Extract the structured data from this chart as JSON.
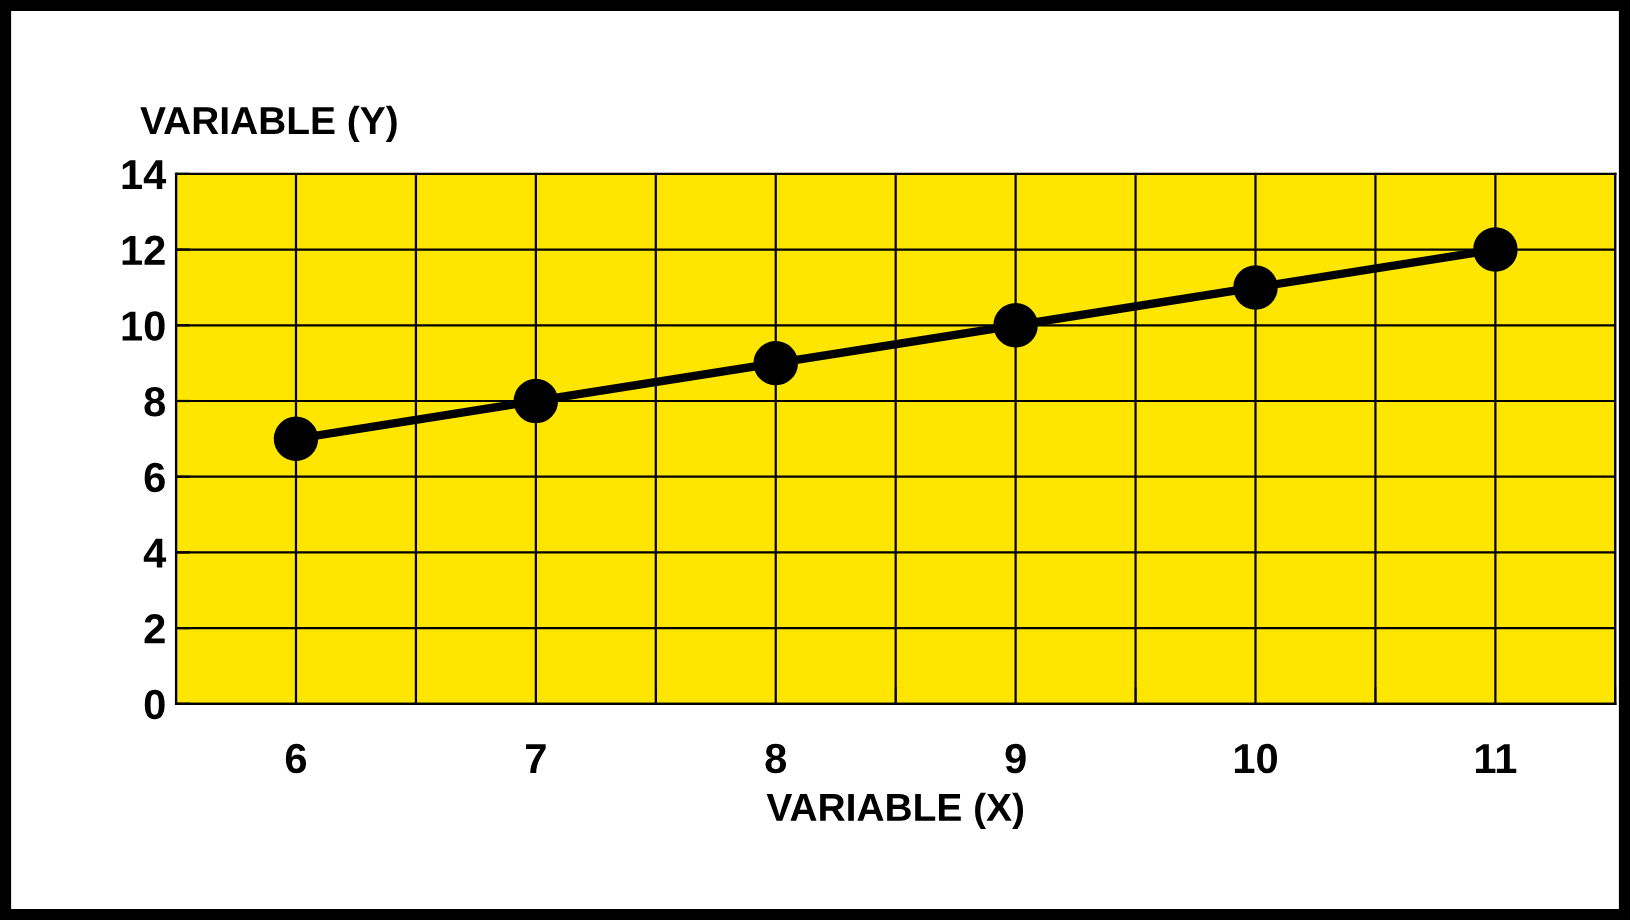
{
  "chart_data": {
    "type": "line",
    "xlabel": "VARIABLE (X)",
    "ylabel": "VARIABLE (Y)",
    "categories": [
      "6",
      "7",
      "8",
      "9",
      "10",
      "11"
    ],
    "series": [
      {
        "color": "#000000",
        "values": [
          7,
          8,
          9,
          10,
          11,
          12
        ]
      }
    ],
    "ylim": [
      0,
      14
    ],
    "yticks": [
      0,
      2,
      4,
      6,
      8,
      10,
      12,
      14
    ],
    "grid": true,
    "marker": "circle",
    "line_style": "solid",
    "legend": false
  }
}
